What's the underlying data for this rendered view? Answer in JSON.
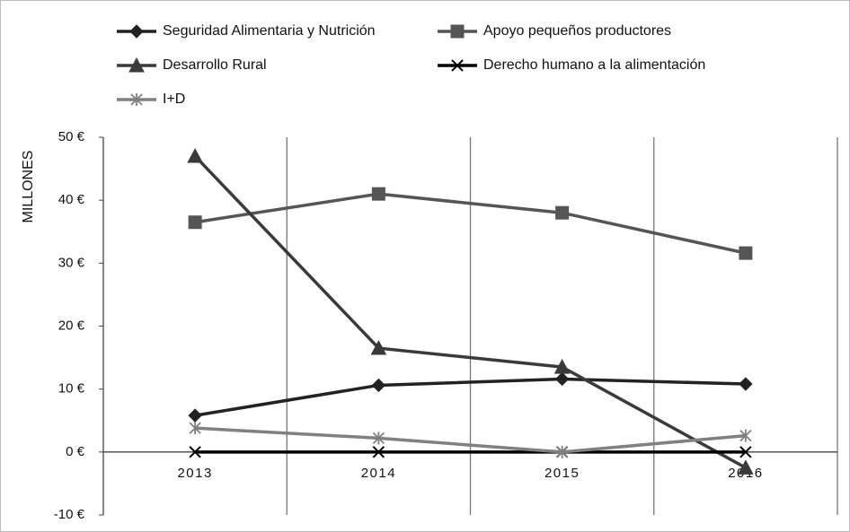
{
  "chart_data": {
    "type": "line",
    "ylabel": "MILLONES",
    "categories": [
      "2013",
      "2014",
      "2015",
      "2016"
    ],
    "series": [
      {
        "name": "Seguridad Alimentaria y Nutrición",
        "color": "#222222",
        "marker": "diamond",
        "values": [
          5.8,
          10.6,
          11.6,
          10.8
        ]
      },
      {
        "name": "Apoyo pequeños productores",
        "color": "#555555",
        "marker": "square",
        "values": [
          36.5,
          41,
          38,
          31.6
        ]
      },
      {
        "name": "Desarrollo Rural",
        "color": "#3a3a3a",
        "marker": "triangle",
        "values": [
          47,
          16.5,
          13.5,
          -2.5
        ]
      },
      {
        "name": "Derecho humano a la alimentación",
        "color": "#000000",
        "marker": "x",
        "values": [
          0,
          0,
          0,
          0
        ]
      },
      {
        "name": "I+D",
        "color": "#808080",
        "marker": "star",
        "values": [
          3.8,
          2.2,
          0,
          2.6
        ]
      }
    ],
    "ylim": [
      -10,
      50
    ],
    "yticks": [
      {
        "value": -10,
        "label": "-10 €"
      },
      {
        "value": 0,
        "label": "0 €"
      },
      {
        "value": 10,
        "label": "10 €"
      },
      {
        "value": 20,
        "label": "20 €"
      },
      {
        "value": 30,
        "label": "30 €"
      },
      {
        "value": 40,
        "label": "40 €"
      },
      {
        "value": 50,
        "label": "50 €"
      }
    ],
    "legend": "top"
  }
}
